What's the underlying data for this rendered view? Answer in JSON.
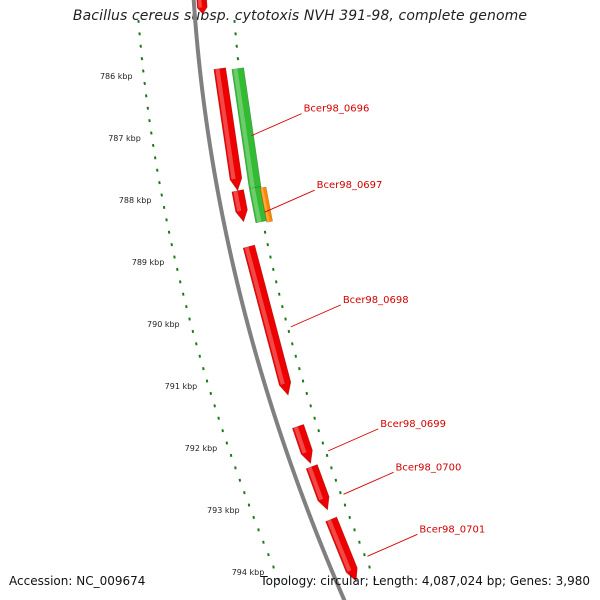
{
  "title": "Bacillus cereus subsp. cytotoxis NVH 391-98, complete genome",
  "footer": {
    "accession": "Accession: NC_009674",
    "topology": "Topology: circular;",
    "length": "Length: 4,087,024 bp;",
    "genes": "Genes: 3,980"
  },
  "colors": {
    "backbone": "#808080",
    "cds": "#ee0000",
    "gene": "#33bb33",
    "rna": "#ff8800",
    "scale_ticks": "#1a7a1a",
    "label_text": "#d40000"
  },
  "scale": {
    "unit": "kbp",
    "ticks": [
      "786 kbp",
      "787 kbp",
      "788 kbp",
      "789 kbp",
      "790 kbp",
      "791 kbp",
      "792 kbp",
      "793 kbp",
      "794 kbp"
    ]
  },
  "features": {
    "cds": [
      {
        "label": "Bcer98_0696",
        "strand": "+",
        "start_kbp": 785.88,
        "end_kbp": 787.85
      },
      {
        "label": "Bcer98_0697",
        "strand": "+",
        "start_kbp": 787.85,
        "end_kbp": 788.35
      },
      {
        "label": "Bcer98_0698",
        "strand": "+",
        "start_kbp": 788.75,
        "end_kbp": 791.15
      },
      {
        "label": "Bcer98_0699",
        "strand": "+",
        "start_kbp": 791.65,
        "end_kbp": 792.25
      },
      {
        "label": "Bcer98_0700",
        "strand": "+",
        "start_kbp": 792.3,
        "end_kbp": 793.0
      },
      {
        "label": "Bcer98_0701",
        "strand": "+",
        "start_kbp": 793.15,
        "end_kbp": 794.15
      }
    ],
    "genes": [
      {
        "strand": "+",
        "start_kbp": 785.88,
        "end_kbp": 787.8
      },
      {
        "strand": "+",
        "start_kbp": 787.8,
        "end_kbp": 788.35
      }
    ],
    "rna": [
      {
        "strand": "+",
        "start_kbp": 787.8,
        "end_kbp": 788.35
      }
    ]
  }
}
